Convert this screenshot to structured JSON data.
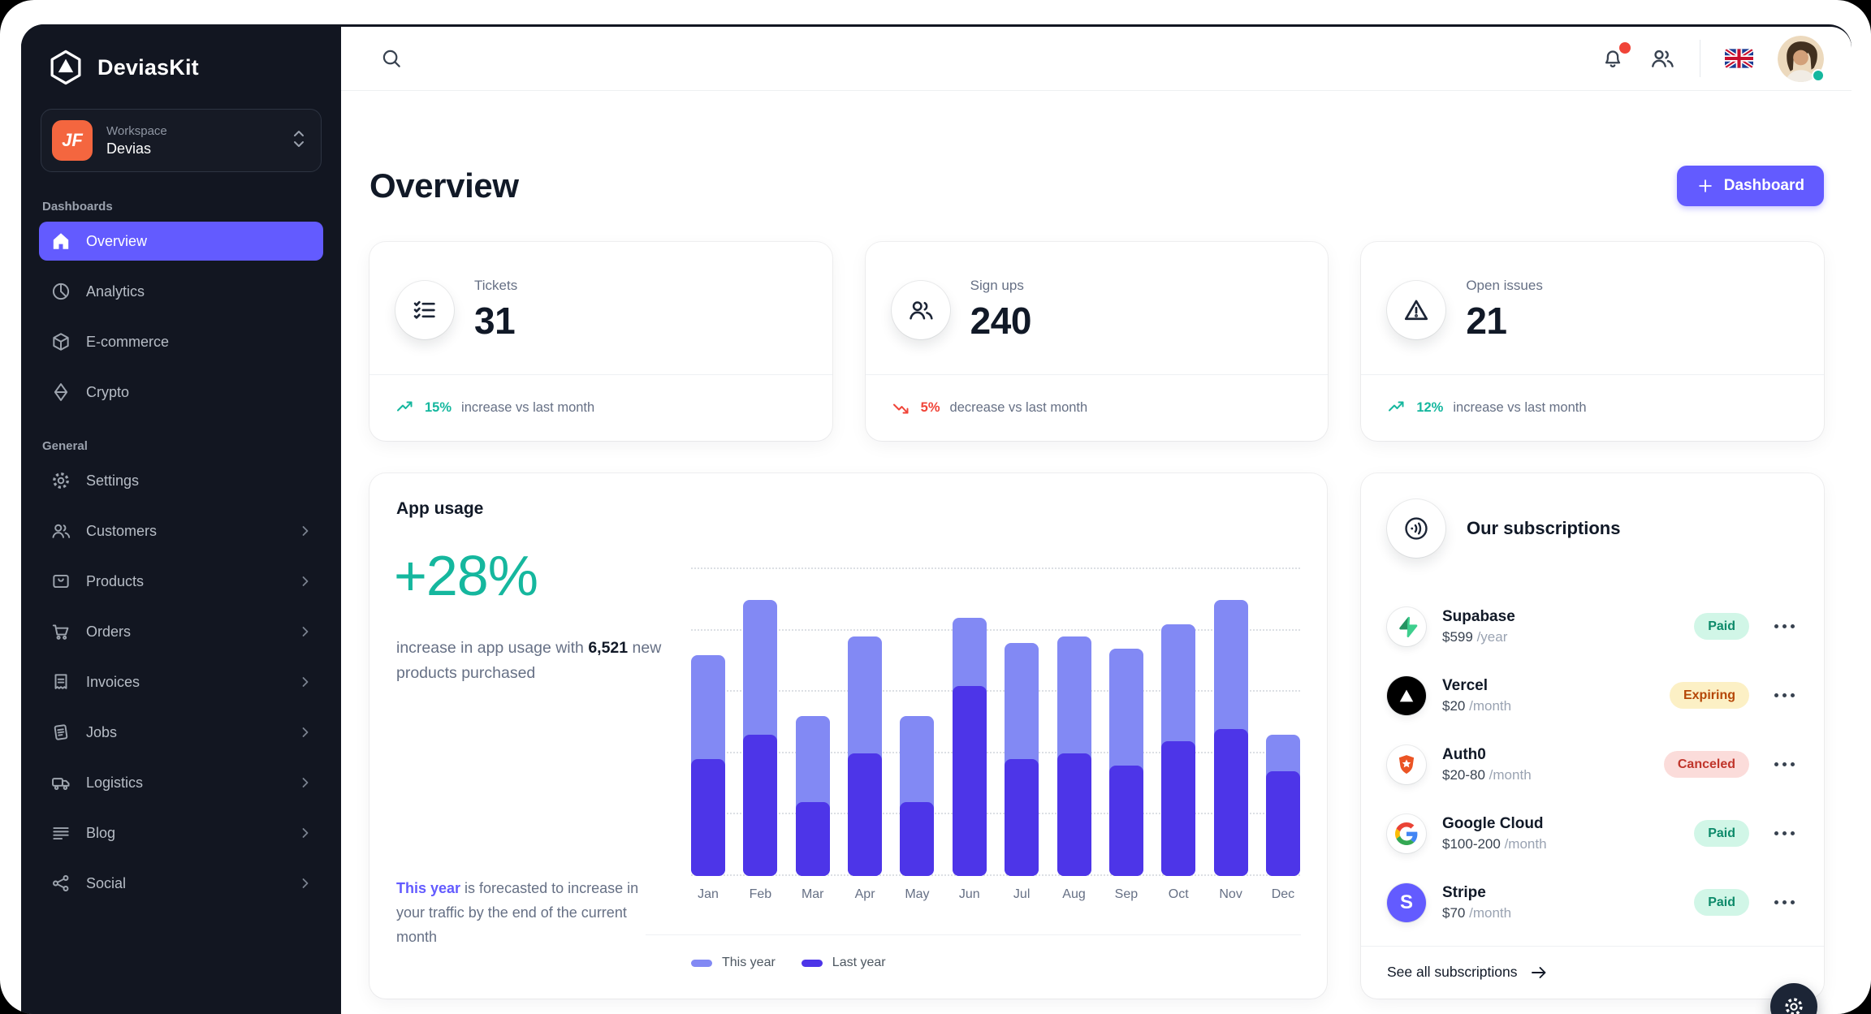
{
  "brand": {
    "name": "DeviasKit"
  },
  "workspace": {
    "label": "Workspace",
    "name": "Devias",
    "initials": "JF"
  },
  "sidebar": {
    "sections": [
      {
        "label": "Dashboards",
        "items": [
          {
            "label": "Overview",
            "icon": "home-icon",
            "active": true
          },
          {
            "label": "Analytics",
            "icon": "pie-chart-icon"
          },
          {
            "label": "E-commerce",
            "icon": "cube-icon"
          },
          {
            "label": "Crypto",
            "icon": "diamond-icon"
          }
        ]
      },
      {
        "label": "General",
        "items": [
          {
            "label": "Settings",
            "icon": "gear-icon"
          },
          {
            "label": "Customers",
            "icon": "users-icon",
            "chevron": true
          },
          {
            "label": "Products",
            "icon": "box-icon",
            "chevron": true
          },
          {
            "label": "Orders",
            "icon": "cart-icon",
            "chevron": true
          },
          {
            "label": "Invoices",
            "icon": "receipt-icon",
            "chevron": true
          },
          {
            "label": "Jobs",
            "icon": "document-icon",
            "chevron": true
          },
          {
            "label": "Logistics",
            "icon": "truck-icon",
            "chevron": true
          },
          {
            "label": "Blog",
            "icon": "lines-icon",
            "chevron": true
          },
          {
            "label": "Social",
            "icon": "share-icon",
            "chevron": true
          }
        ]
      }
    ]
  },
  "page": {
    "title": "Overview",
    "action_label": "Dashboard"
  },
  "stats": [
    {
      "label": "Tickets",
      "value": "31",
      "trend": "up",
      "percent": "15%",
      "note": "increase vs last month"
    },
    {
      "label": "Sign ups",
      "value": "240",
      "trend": "down",
      "percent": "5%",
      "note": "decrease vs last month"
    },
    {
      "label": "Open issues",
      "value": "21",
      "trend": "up",
      "percent": "12%",
      "note": "increase vs last month"
    }
  ],
  "app_usage": {
    "title": "App usage",
    "highlight": "+28%",
    "desc_prefix": "increase in app usage with ",
    "desc_bold": "6,521",
    "desc_suffix": " new products purchased",
    "forecast_highlight": "This year",
    "forecast_rest": " is forecasted to increase in your traffic by the end of the current month"
  },
  "chart_data": {
    "type": "bar",
    "stacked": true,
    "categories": [
      "Jan",
      "Feb",
      "Mar",
      "Apr",
      "May",
      "Jun",
      "Jul",
      "Aug",
      "Sep",
      "Oct",
      "Nov",
      "Dec"
    ],
    "series": [
      {
        "name": "This year",
        "color": "#8289f4",
        "position": "top",
        "values": [
          8.5,
          11,
          7,
          9.5,
          7,
          5.5,
          9.5,
          9.5,
          9.5,
          9.5,
          10.5,
          3
        ]
      },
      {
        "name": "Last year",
        "color": "#4d35e8",
        "position": "bottom",
        "values": [
          9.5,
          11.5,
          6,
          10,
          6,
          15.5,
          9.5,
          10,
          9,
          11,
          12,
          8.5
        ]
      }
    ],
    "title": "App usage",
    "xlabel": "",
    "ylabel": "",
    "ylim": [
      0,
      25
    ],
    "grid": "dotted-horizontal",
    "legend_position": "bottom"
  },
  "subscriptions": {
    "title": "Our subscriptions",
    "rows": [
      {
        "name": "Supabase",
        "amount": "$599",
        "period": "/year",
        "status": "Paid"
      },
      {
        "name": "Vercel",
        "amount": "$20",
        "period": "/month",
        "status": "Expiring"
      },
      {
        "name": "Auth0",
        "amount": "$20-80",
        "period": "/month",
        "status": "Canceled"
      },
      {
        "name": "Google Cloud",
        "amount": "$100-200",
        "period": "/month",
        "status": "Paid"
      },
      {
        "name": "Stripe",
        "amount": "$70",
        "period": "/month",
        "status": "Paid"
      }
    ],
    "footer": "See all subscriptions"
  },
  "colors": {
    "accent": "#635bff",
    "sidebar_bg": "#121621",
    "success": "#15b79e",
    "error": "#f04438",
    "bar_this_year": "#8289f4",
    "bar_last_year": "#4d35e8",
    "workspace_icon": "#F4663F"
  }
}
